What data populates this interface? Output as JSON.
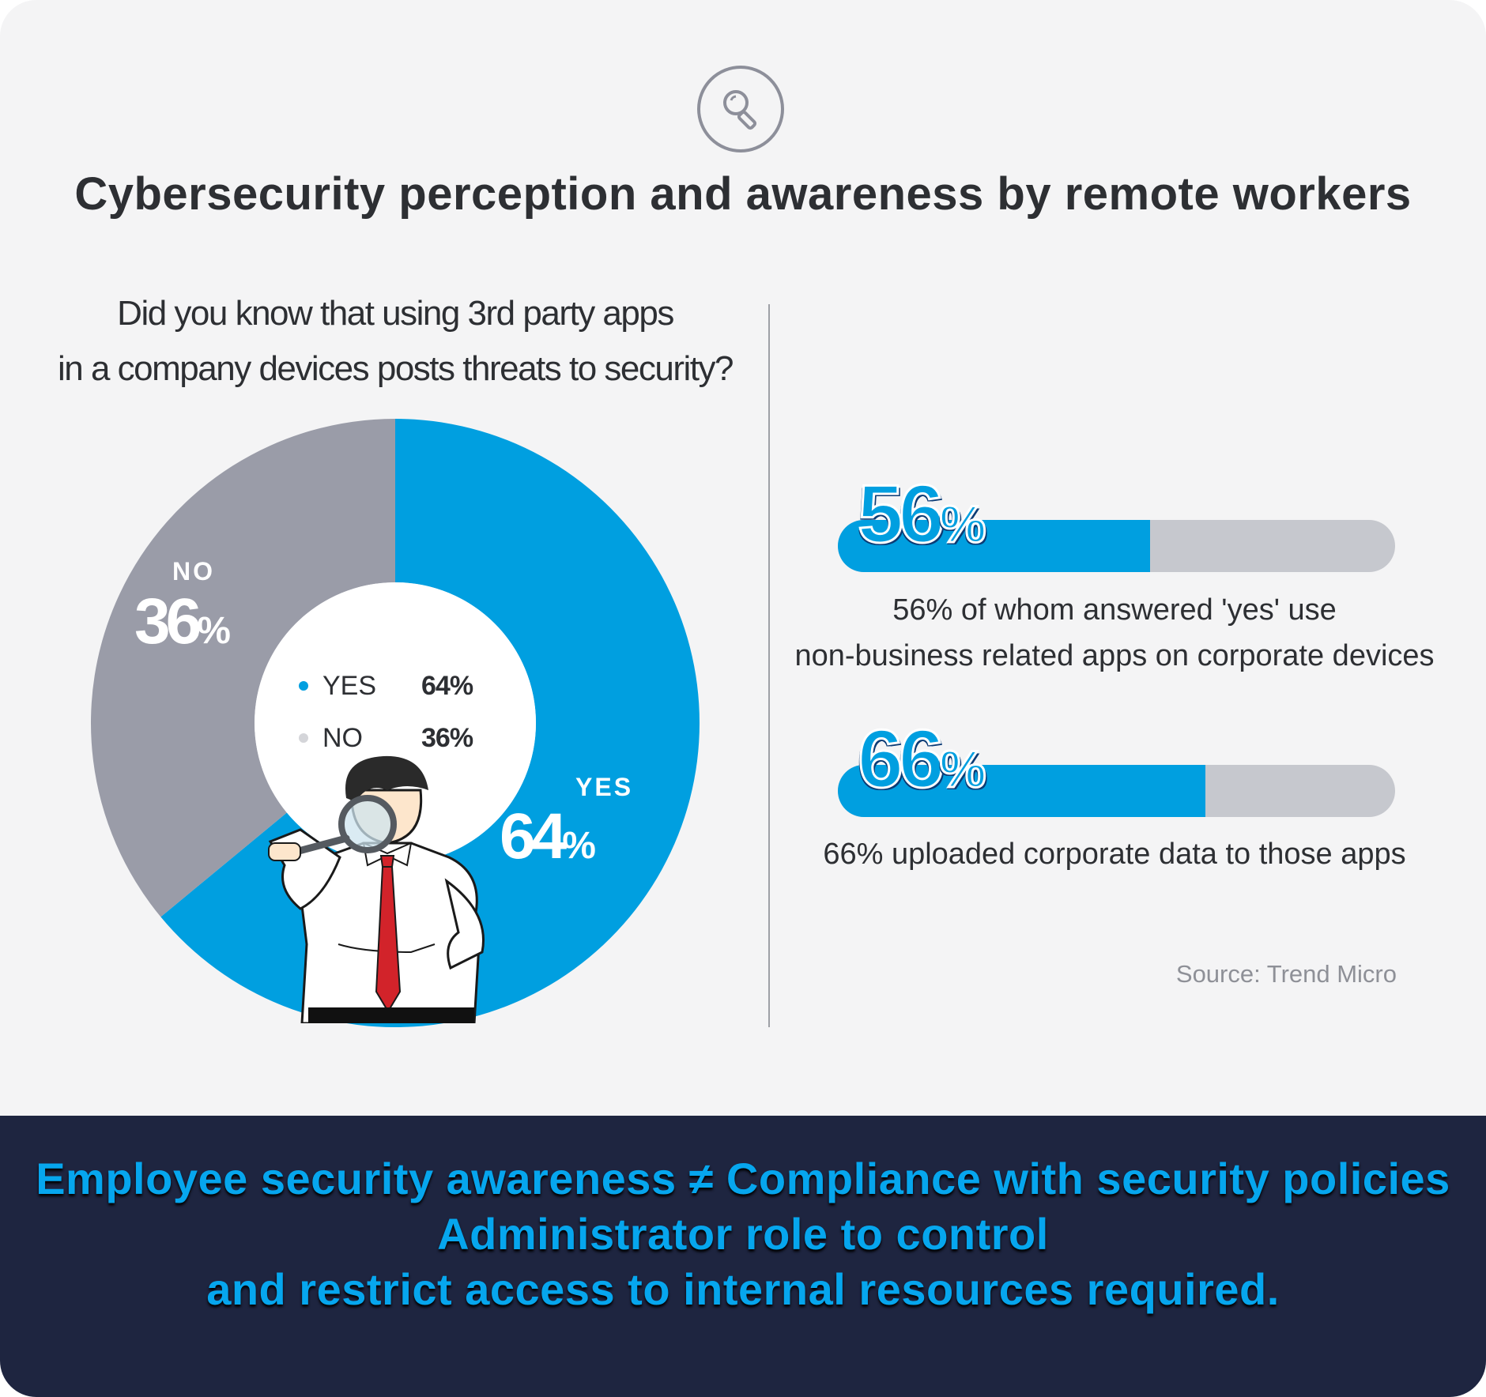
{
  "title": "Cybersecurity perception and awareness by remote workers",
  "question": {
    "line1": "Did you know that using 3rd party apps",
    "line2": "in a company devices posts threats to security?"
  },
  "colors": {
    "yes": "#009fe0",
    "no": "#9a9ca8",
    "bar_track": "#c6c8ce",
    "footer_bg": "#1e2540",
    "footer_text": "#06a6ee"
  },
  "chart_data": [
    {
      "type": "pie",
      "categories": [
        "YES",
        "NO"
      ],
      "values": [
        64,
        36
      ],
      "unit": "%",
      "legend": [
        {
          "label": "YES",
          "value": "64%"
        },
        {
          "label": "NO",
          "value": "36%"
        }
      ],
      "slice_labels": {
        "yes_name": "YES",
        "yes_value": "64",
        "yes_unit": "%",
        "no_name": "NO",
        "no_value": "36",
        "no_unit": "%"
      },
      "legend_placement": "center"
    },
    {
      "type": "bar",
      "categories": [
        "56% of whom answered 'yes' use non-business related apps on corporate devices",
        "66% uploaded corporate data to those apps"
      ],
      "values": [
        56,
        66
      ],
      "xlim": [
        0,
        100
      ]
    }
  ],
  "stats": [
    {
      "value": "56",
      "unit": "%",
      "fraction": 0.56,
      "line1": "56% of whom answered 'yes' use",
      "line2": "non-business related apps on corporate devices"
    },
    {
      "value": "66",
      "unit": "%",
      "fraction": 0.66,
      "line1": "66% uploaded corporate data to those apps",
      "line2": ""
    }
  ],
  "source": "Source: Trend Micro",
  "footer": {
    "line1": "Employee security awareness ≠ Compliance with security policies",
    "line2": "Administrator role to control",
    "line3": "and restrict access to internal resources required."
  },
  "icons": [
    "magnifier-icon",
    "man-with-magnifying-glass-illustration"
  ]
}
